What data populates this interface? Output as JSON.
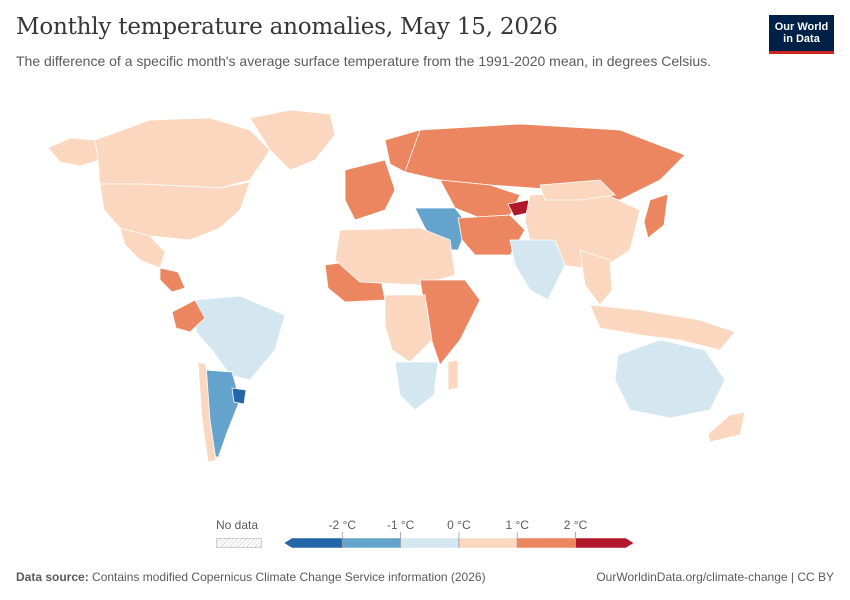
{
  "header": {
    "title": "Monthly temperature anomalies, May 15, 2026",
    "subtitle": "The difference of a specific month's average surface temperature from the 1991-2020 mean, in degrees Celsius.",
    "logo_line1": "Our World",
    "logo_line2": "in Data",
    "logo_color": "#002147",
    "logo_accent": "#ce261e"
  },
  "legend": {
    "no_data_label": "No data",
    "bins": [
      {
        "range": "below -2",
        "color": "#2366a8"
      },
      {
        "range": "-2 to -1",
        "color": "#63a3cc"
      },
      {
        "range": "-1 to 0",
        "color": "#d4e6f0"
      },
      {
        "range": "0 to 1",
        "color": "#fbd7c0"
      },
      {
        "range": "1 to 2",
        "color": "#ec8660"
      },
      {
        "range": "above 2",
        "color": "#b2182b"
      }
    ],
    "ticks": [
      "-2 °C",
      "-1 °C",
      "0 °C",
      "1 °C",
      "2 °C"
    ]
  },
  "map": {
    "regions": [
      {
        "name": "Alaska",
        "bin": 3
      },
      {
        "name": "Canada",
        "bin": 3
      },
      {
        "name": "Greenland",
        "bin": 3
      },
      {
        "name": "United States",
        "bin": 3
      },
      {
        "name": "Mexico",
        "bin": 3
      },
      {
        "name": "Central America",
        "bin": 4
      },
      {
        "name": "Brazil",
        "bin": 2
      },
      {
        "name": "Colombia & Ecuador",
        "bin": 4
      },
      {
        "name": "Argentina",
        "bin": 1
      },
      {
        "name": "Uruguay",
        "bin": 0
      },
      {
        "name": "Chile",
        "bin": 3
      },
      {
        "name": "Western Europe",
        "bin": 4
      },
      {
        "name": "Scandinavia",
        "bin": 4
      },
      {
        "name": "Russia",
        "bin": 4
      },
      {
        "name": "Kazakhstan & Central Asia",
        "bin": 4
      },
      {
        "name": "Kyrgyzstan",
        "bin": 5
      },
      {
        "name": "Turkey & Middle East",
        "bin": 1
      },
      {
        "name": "Iran & Afghanistan",
        "bin": 4
      },
      {
        "name": "China",
        "bin": 3
      },
      {
        "name": "Mongolia",
        "bin": 3
      },
      {
        "name": "India",
        "bin": 2
      },
      {
        "name": "Southeast Asia",
        "bin": 3
      },
      {
        "name": "Japan",
        "bin": 4
      },
      {
        "name": "West Africa",
        "bin": 4
      },
      {
        "name": "North Africa",
        "bin": 3
      },
      {
        "name": "East Africa",
        "bin": 4
      },
      {
        "name": "Central Africa",
        "bin": 3
      },
      {
        "name": "Southern Africa",
        "bin": 2
      },
      {
        "name": "Madagascar",
        "bin": 3
      },
      {
        "name": "Australia",
        "bin": 2
      },
      {
        "name": "New Zealand",
        "bin": 3
      },
      {
        "name": "Indonesia & New Guinea",
        "bin": 3
      }
    ]
  },
  "footer": {
    "source_label": "Data source:",
    "source_text": " Contains modified Copernicus Climate Change Service information (2026)",
    "link_text": "OurWorldinData.org/climate-change | CC BY"
  }
}
